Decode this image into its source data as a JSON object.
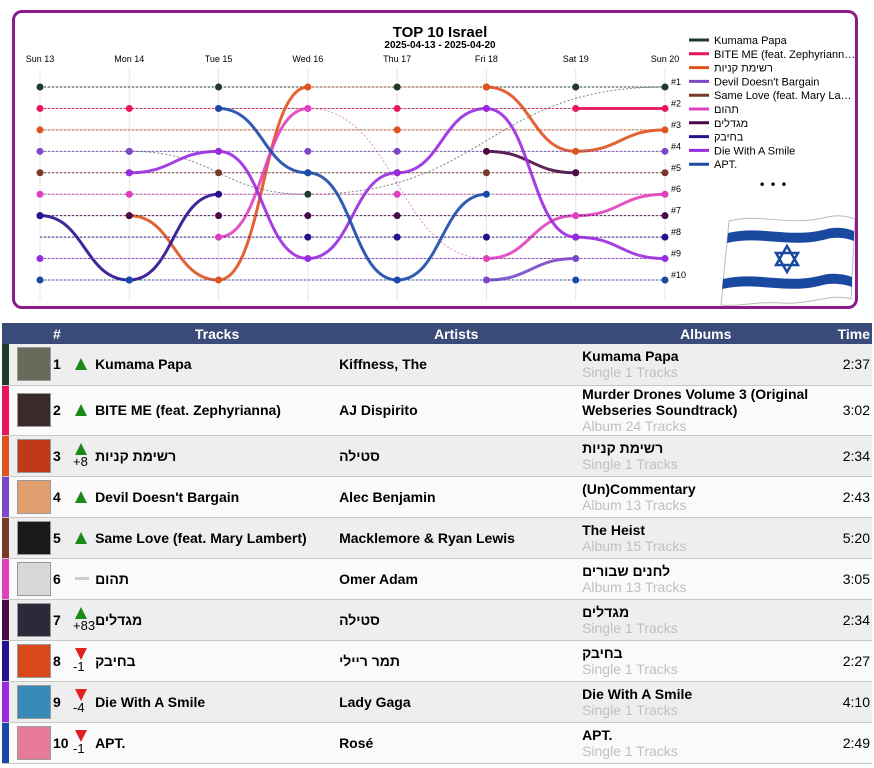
{
  "chart_data": {
    "type": "line",
    "title": "TOP 10 Israel",
    "subtitle": "2025-04-13 - 2025-04-20",
    "categories": [
      "Sun 13",
      "Mon 14",
      "Tue 15",
      "Wed 16",
      "Thu 17",
      "Fri 18",
      "Sat 19",
      "Sun 20"
    ],
    "ylabels": [
      "#1",
      "#2",
      "#3",
      "#4",
      "#5",
      "#6",
      "#7",
      "#8",
      "#9",
      "#10"
    ],
    "ylim": [
      1,
      10
    ],
    "series": [
      {
        "name": "Kumama Papa",
        "color": "#1e3a2a",
        "ranks": [
          null,
          4,
          null,
          6,
          null,
          null,
          null,
          1
        ]
      },
      {
        "name": "BITE ME (feat. Zephyriann…",
        "color": "#e8145c",
        "ranks": [
          null,
          null,
          null,
          null,
          null,
          null,
          2,
          2
        ]
      },
      {
        "name": "רשימת קניות",
        "color": "#e0521e",
        "ranks": [
          null,
          7,
          10,
          1,
          null,
          1,
          4,
          3
        ]
      },
      {
        "name": "Devil Doesn't Bargain",
        "color": "#7a48c8",
        "ranks": [
          null,
          null,
          null,
          null,
          null,
          10,
          9,
          null
        ]
      },
      {
        "name": "Same Love (feat. Mary La…",
        "color": "#7a3a2a",
        "ranks": [
          null,
          null,
          null,
          null,
          null,
          null,
          null,
          null
        ]
      },
      {
        "name": "תהום",
        "color": "#e040c0",
        "ranks": [
          null,
          null,
          8,
          2,
          null,
          9,
          7,
          6
        ]
      },
      {
        "name": "מגדלים",
        "color": "#4a0a4a",
        "ranks": [
          null,
          null,
          null,
          null,
          null,
          4,
          5,
          null
        ]
      },
      {
        "name": "בחיבק",
        "color": "#2a1090",
        "ranks": [
          7,
          10,
          6,
          null,
          null,
          null,
          null,
          null
        ]
      },
      {
        "name": "Die With A Smile",
        "color": "#9a2ae0",
        "ranks": [
          null,
          5,
          4,
          9,
          5,
          2,
          8,
          9
        ]
      },
      {
        "name": "APT.",
        "color": "#1a4aa8",
        "ranks": [
          null,
          null,
          2,
          5,
          10,
          6,
          null,
          null
        ]
      }
    ],
    "flag": "israel-flag"
  },
  "legend_more": "• • •",
  "table": {
    "headers": {
      "rank": "#",
      "tracks": "Tracks",
      "artists": "Artists",
      "albums": "Albums",
      "time": "Time"
    },
    "rows": [
      {
        "rank": "1",
        "change": "up",
        "change_text": "",
        "track": "Kumama Papa",
        "artist": "Kiffness, The",
        "album": "Kumama Papa",
        "album_sub": "Single 1 Tracks",
        "time": "2:37",
        "color": "#1e3a2a",
        "cover": "#6a6a5a"
      },
      {
        "rank": "2",
        "change": "up",
        "change_text": "",
        "track": "BITE ME (feat. Zephyrianna)",
        "artist": "AJ Dispirito",
        "album": "Murder Drones Volume 3 (Original Webseries Soundtrack)",
        "album_sub": "Album 24 Tracks",
        "time": "3:02",
        "color": "#e8145c",
        "cover": "#3a2a2a"
      },
      {
        "rank": "3",
        "change": "up",
        "change_text": "+8",
        "track": "רשימת קניות",
        "artist": "סטילה",
        "album": "רשימת קניות",
        "album_sub": "Single 1 Tracks",
        "time": "2:34",
        "color": "#e0521e",
        "cover": "#c03a1a"
      },
      {
        "rank": "4",
        "change": "up",
        "change_text": "",
        "track": "Devil Doesn't Bargain",
        "artist": "Alec Benjamin",
        "album": "(Un)Commentary",
        "album_sub": "Album 13 Tracks",
        "time": "2:43",
        "color": "#7a48c8",
        "cover": "#e0a070"
      },
      {
        "rank": "5",
        "change": "up",
        "change_text": "",
        "track": "Same Love (feat. Mary Lambert)",
        "artist": "Macklemore & Ryan Lewis",
        "album": "The Heist",
        "album_sub": "Album 15 Tracks",
        "time": "5:20",
        "color": "#7a3a2a",
        "cover": "#1a1a1a"
      },
      {
        "rank": "6",
        "change": "same",
        "change_text": "",
        "track": "תהום",
        "artist": "Omer Adam",
        "album": "לחנים שבורים",
        "album_sub": "Album 13 Tracks",
        "time": "3:05",
        "color": "#e040c0",
        "cover": "#d8d8d8"
      },
      {
        "rank": "7",
        "change": "up",
        "change_text": "+83",
        "track": "מגדלים",
        "artist": "סטילה",
        "album": "מגדלים",
        "album_sub": "Single 1 Tracks",
        "time": "2:34",
        "color": "#4a0a4a",
        "cover": "#2a2a3a"
      },
      {
        "rank": "8",
        "change": "down",
        "change_text": "-1",
        "track": "בחיבק",
        "artist": "תמר ריילי",
        "album": "בחיבק",
        "album_sub": "Single 1 Tracks",
        "time": "2:27",
        "color": "#2a1090",
        "cover": "#d84a1a"
      },
      {
        "rank": "9",
        "change": "down",
        "change_text": "-4",
        "track": "Die With A Smile",
        "artist": "Lady Gaga",
        "album": "Die With A Smile",
        "album_sub": "Single 1 Tracks",
        "time": "4:10",
        "color": "#9a2ae0",
        "cover": "#3a8ab8"
      },
      {
        "rank": "10",
        "change": "down",
        "change_text": "-1",
        "track": "APT.",
        "artist": "Rosé",
        "album": "APT.",
        "album_sub": "Single 1 Tracks",
        "time": "2:49",
        "color": "#1a4aa8",
        "cover": "#e87a9a"
      }
    ]
  }
}
